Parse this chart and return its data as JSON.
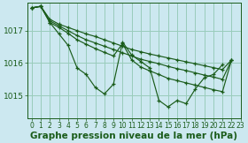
{
  "title": "Graphe pression niveau de la mer (hPa)",
  "background_color": "#cce8f0",
  "grid_color": "#99ccbb",
  "line_color": "#1a5c1a",
  "marker_color": "#1a5c1a",
  "xlim": [
    -0.5,
    23
  ],
  "ylim": [
    1014.3,
    1017.85
  ],
  "yticks": [
    1015,
    1016,
    1017
  ],
  "xticks": [
    0,
    1,
    2,
    3,
    4,
    5,
    6,
    7,
    8,
    9,
    10,
    11,
    12,
    13,
    14,
    15,
    16,
    17,
    18,
    19,
    20,
    21,
    22,
    23
  ],
  "wiggly": [
    1017.7,
    1017.75,
    1017.25,
    1016.9,
    1016.55,
    1015.85,
    1015.65,
    1015.25,
    1015.05,
    1015.35,
    1016.65,
    1016.25,
    1016.05,
    1015.85,
    1014.85,
    1014.65,
    1014.85,
    1014.75,
    1015.2,
    1015.55,
    1015.65,
    1015.95,
    null,
    null
  ],
  "env_top": [
    1017.7,
    1017.75,
    1017.35,
    1017.2,
    1017.1,
    1017.0,
    1016.9,
    1016.82,
    1016.72,
    1016.62,
    1016.52,
    1016.42,
    1016.35,
    1016.28,
    1016.22,
    1016.16,
    1016.1,
    1016.04,
    1015.98,
    1015.92,
    1015.86,
    1015.8,
    1016.1,
    null
  ],
  "env_mid1": [
    1017.7,
    1017.75,
    1017.3,
    1017.15,
    1017.0,
    1016.85,
    1016.72,
    1016.62,
    1016.52,
    1016.42,
    1016.32,
    1016.22,
    1016.12,
    1016.05,
    1015.98,
    1015.9,
    1015.83,
    1015.77,
    1015.7,
    1015.63,
    1015.57,
    1015.5,
    1016.1,
    null
  ],
  "env_mid2": [
    1017.7,
    1017.75,
    1017.25,
    1017.1,
    1016.92,
    1016.72,
    1016.58,
    1016.45,
    1016.33,
    1016.22,
    1016.6,
    1016.1,
    1015.88,
    1015.76,
    1015.65,
    1015.53,
    1015.46,
    1015.39,
    1015.32,
    1015.25,
    1015.18,
    1015.12,
    1016.1,
    null
  ],
  "title_fontsize": 7.5,
  "tick_fontsize": 6.5,
  "xtick_fontsize": 5.5
}
